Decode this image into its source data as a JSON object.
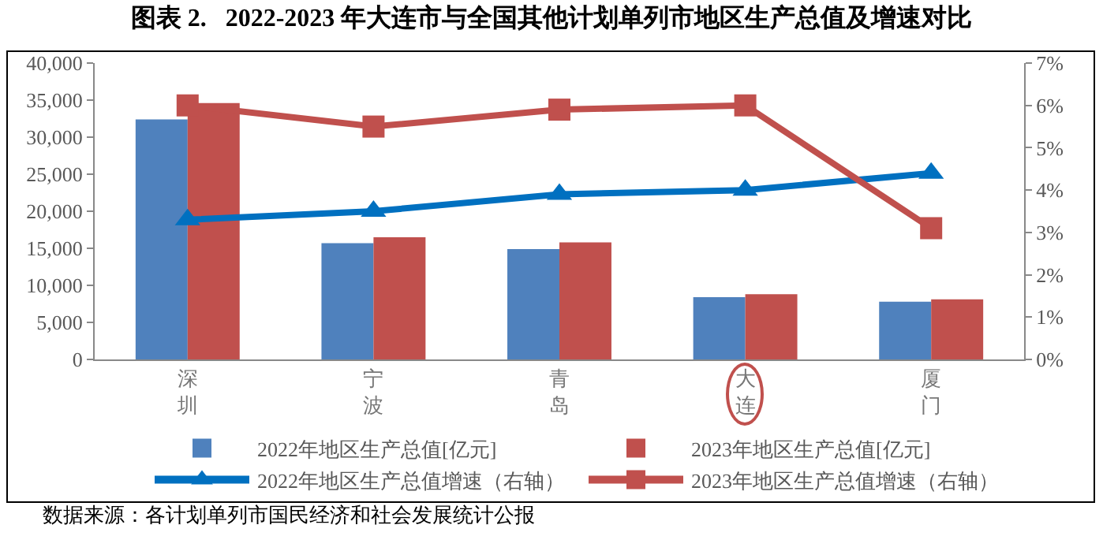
{
  "chart_data": {
    "type": "bar",
    "title": "图表 2.   2022-2023 年大连市与全国其他计划单列市地区生产总值及增速对比",
    "categories": [
      "深圳",
      "宁波",
      "青岛",
      "大连",
      "厦门"
    ],
    "series": [
      {
        "name": "2022年地区生产总值[亿元]",
        "color": "#4f81bd",
        "values": [
          32400,
          15700,
          14900,
          8400,
          7800
        ]
      },
      {
        "name": "2023年地区生产总值[亿元]",
        "color": "#c0504d",
        "values": [
          34600,
          16500,
          15800,
          8800,
          8100
        ]
      },
      {
        "name": "2022年地区生产总值增速（右轴）",
        "type": "line",
        "axis": "y2",
        "marker": "triangle",
        "color": "#0070c0",
        "values": [
          3.3,
          3.5,
          3.9,
          4.0,
          4.4
        ]
      },
      {
        "name": "2023年地区生产总值增速（右轴）",
        "type": "line",
        "axis": "y2",
        "marker": "square",
        "color": "#c0504d",
        "values": [
          6.0,
          5.5,
          5.9,
          6.0,
          3.1
        ]
      }
    ],
    "ylim": [
      0,
      40000
    ],
    "yticks": [
      {
        "value": 0,
        "label": "0"
      },
      {
        "value": 5000,
        "label": "5,000"
      },
      {
        "value": 10000,
        "label": "10,000"
      },
      {
        "value": 15000,
        "label": "15,000"
      },
      {
        "value": 20000,
        "label": "20,000"
      },
      {
        "value": 25000,
        "label": "25,000"
      },
      {
        "value": 30000,
        "label": "30,000"
      },
      {
        "value": 35000,
        "label": "35,000"
      },
      {
        "value": 40000,
        "label": "40,000"
      }
    ],
    "y2lim": [
      0,
      7
    ],
    "y2ticks": [
      {
        "value": 0,
        "label": "0%"
      },
      {
        "value": 1,
        "label": "1%"
      },
      {
        "value": 2,
        "label": "2%"
      },
      {
        "value": 3,
        "label": "3%"
      },
      {
        "value": 4,
        "label": "4%"
      },
      {
        "value": 5,
        "label": "5%"
      },
      {
        "value": 6,
        "label": "6%"
      },
      {
        "value": 7,
        "label": "7%"
      }
    ],
    "grid": false,
    "legend": "bottom",
    "annotations": [
      "数据来源：各计划单列市国民经济和社会发展统计公报"
    ]
  }
}
